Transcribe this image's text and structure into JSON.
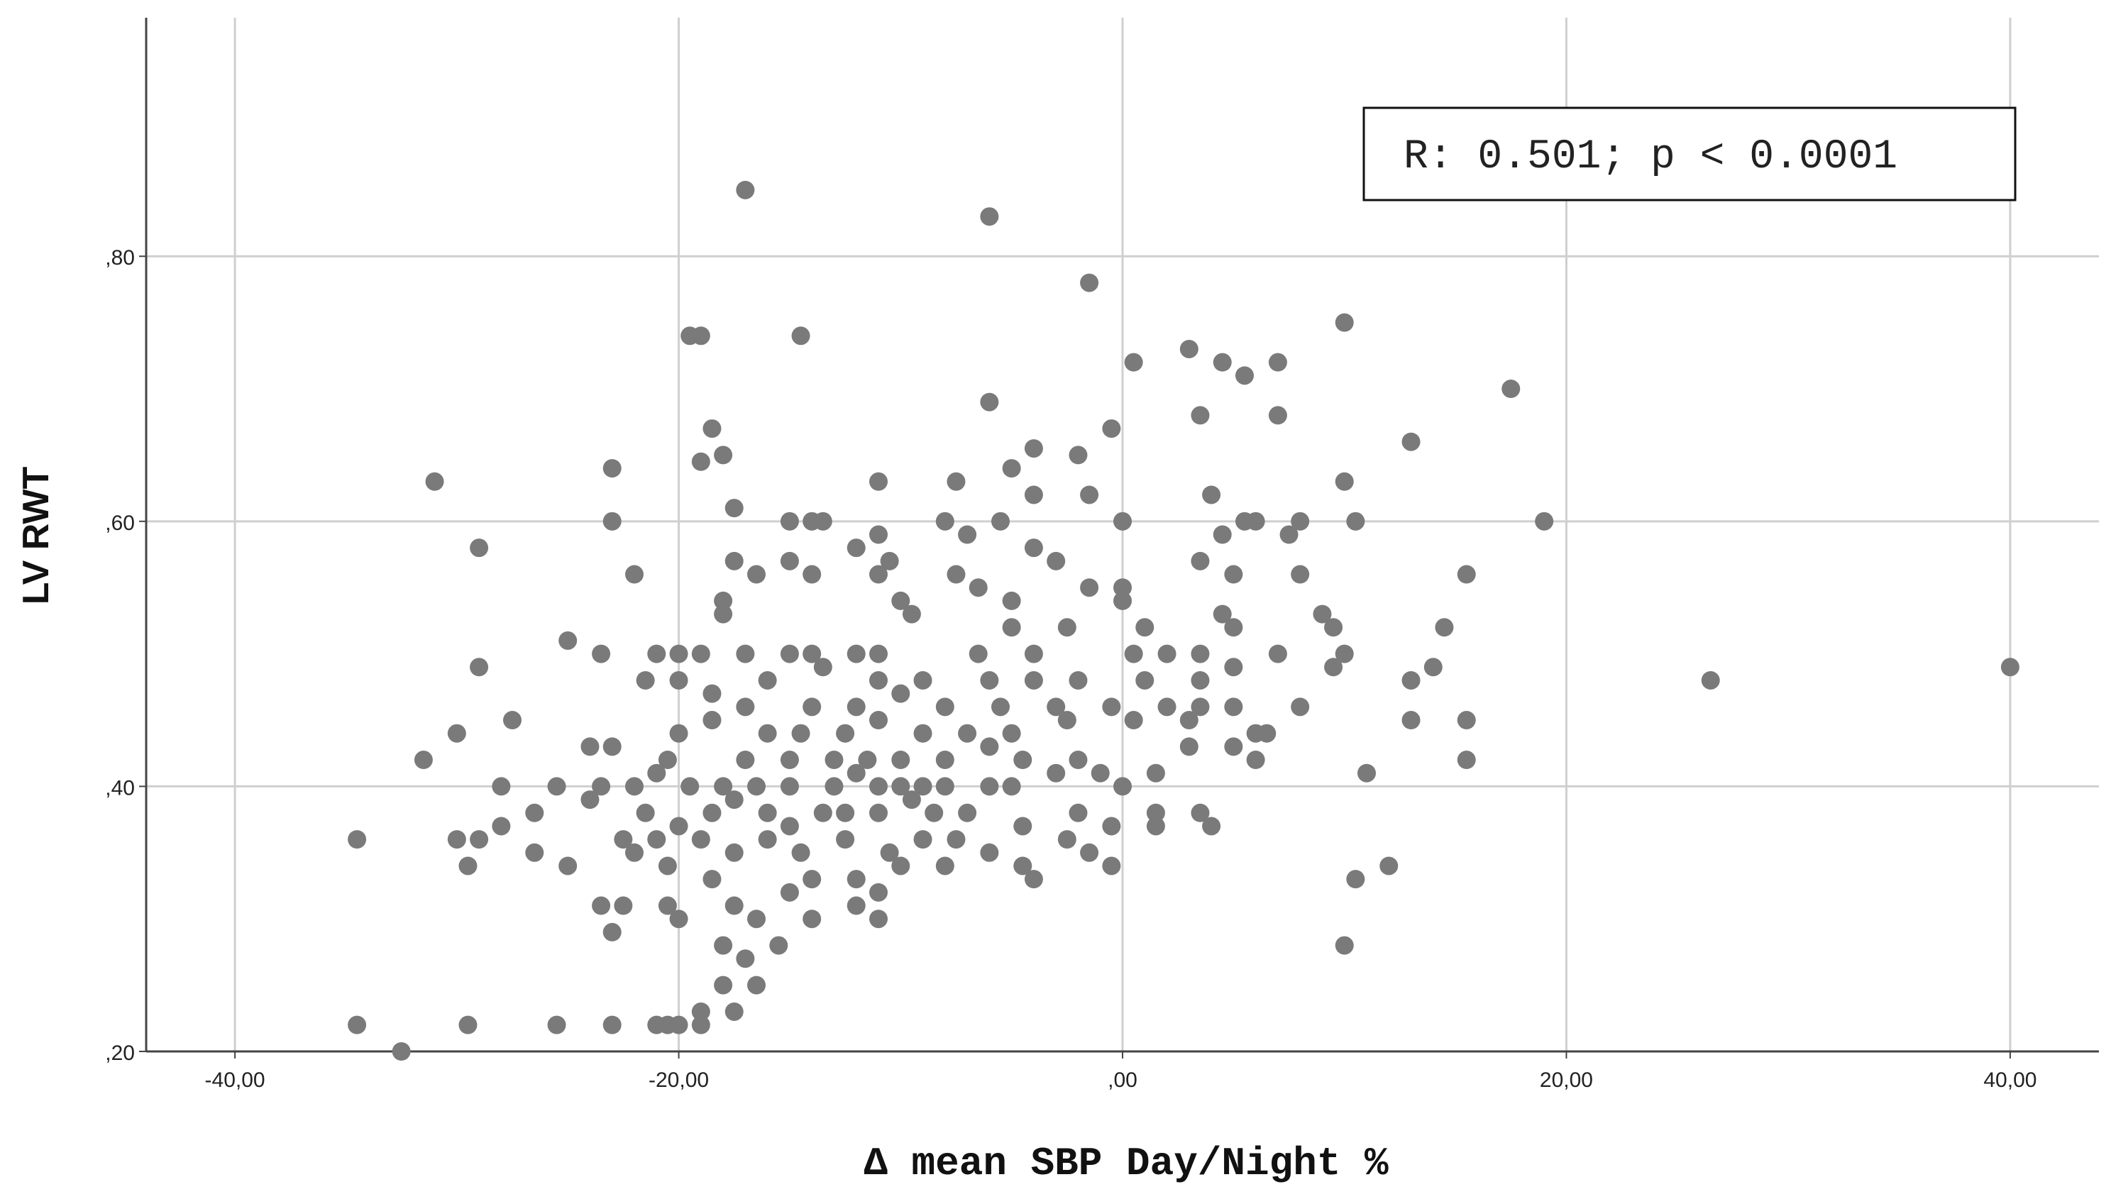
{
  "chart_data": {
    "type": "scatter",
    "xlabel": "Δ mean SBP Day/Night %",
    "ylabel": "LV RWT",
    "xlim": [
      -44,
      44
    ],
    "ylim": [
      0.2,
      0.98
    ],
    "x_ticks": [
      -40,
      -20,
      0,
      20,
      40
    ],
    "x_tick_labels": [
      "-40,00",
      "-20,00",
      ",00",
      "20,00",
      "40,00"
    ],
    "y_ticks": [
      0.2,
      0.4,
      0.6,
      0.8
    ],
    "y_tick_labels": [
      ",20",
      ",40",
      ",60",
      ",80"
    ],
    "grid": true,
    "annotation": "R: 0.501; p < 0.0001",
    "annotation_position": "top-right",
    "marker_color": "#7a7a7a",
    "points": [
      [
        -17,
        0.85
      ],
      [
        -6,
        0.83
      ],
      [
        -1.5,
        0.78
      ],
      [
        10,
        0.75
      ],
      [
        17.5,
        0.7
      ],
      [
        3,
        0.73
      ],
      [
        4.5,
        0.72
      ],
      [
        7,
        0.72
      ],
      [
        0.5,
        0.72
      ],
      [
        5.5,
        0.71
      ],
      [
        -19.5,
        0.74
      ],
      [
        -19,
        0.74
      ],
      [
        -14.5,
        0.74
      ],
      [
        -6,
        0.69
      ],
      [
        3.5,
        0.68
      ],
      [
        7,
        0.68
      ],
      [
        -0.5,
        0.67
      ],
      [
        13,
        0.66
      ],
      [
        -18.5,
        0.67
      ],
      [
        -18,
        0.65
      ],
      [
        -19,
        0.645
      ],
      [
        -4,
        0.655
      ],
      [
        -2,
        0.65
      ],
      [
        -5,
        0.64
      ],
      [
        -31,
        0.63
      ],
      [
        -23,
        0.64
      ],
      [
        -11,
        0.63
      ],
      [
        -7.5,
        0.63
      ],
      [
        10,
        0.63
      ],
      [
        -4,
        0.62
      ],
      [
        -1.5,
        0.62
      ],
      [
        4,
        0.62
      ],
      [
        -23,
        0.6
      ],
      [
        -15,
        0.6
      ],
      [
        -14,
        0.6
      ],
      [
        -13.5,
        0.6
      ],
      [
        -8,
        0.6
      ],
      [
        -5.5,
        0.6
      ],
      [
        0,
        0.6
      ],
      [
        5.5,
        0.6
      ],
      [
        6,
        0.6
      ],
      [
        8,
        0.6
      ],
      [
        10.5,
        0.6
      ],
      [
        19,
        0.6
      ],
      [
        -29,
        0.58
      ],
      [
        -17.5,
        0.61
      ],
      [
        -12,
        0.58
      ],
      [
        -11,
        0.59
      ],
      [
        -7,
        0.59
      ],
      [
        -4,
        0.58
      ],
      [
        4.5,
        0.59
      ],
      [
        7.5,
        0.59
      ],
      [
        -15,
        0.57
      ],
      [
        -17.5,
        0.57
      ],
      [
        -10.5,
        0.57
      ],
      [
        -3,
        0.57
      ],
      [
        3.5,
        0.57
      ],
      [
        -22,
        0.56
      ],
      [
        -16.5,
        0.56
      ],
      [
        -14,
        0.56
      ],
      [
        -11,
        0.56
      ],
      [
        -7.5,
        0.56
      ],
      [
        -6.5,
        0.55
      ],
      [
        -1.5,
        0.55
      ],
      [
        0,
        0.55
      ],
      [
        5,
        0.56
      ],
      [
        8,
        0.56
      ],
      [
        15.5,
        0.56
      ],
      [
        -18,
        0.54
      ],
      [
        -10,
        0.54
      ],
      [
        -5,
        0.54
      ],
      [
        0,
        0.54
      ],
      [
        4.5,
        0.53
      ],
      [
        9,
        0.53
      ],
      [
        -25,
        0.51
      ],
      [
        -18,
        0.53
      ],
      [
        -9.5,
        0.53
      ],
      [
        -5,
        0.52
      ],
      [
        -2.5,
        0.52
      ],
      [
        1,
        0.52
      ],
      [
        5,
        0.52
      ],
      [
        9.5,
        0.52
      ],
      [
        -29,
        0.49
      ],
      [
        -23.5,
        0.5
      ],
      [
        -21,
        0.5
      ],
      [
        -20,
        0.5
      ],
      [
        -19,
        0.5
      ],
      [
        -17,
        0.5
      ],
      [
        -15,
        0.5
      ],
      [
        -14,
        0.5
      ],
      [
        -12,
        0.5
      ],
      [
        -11,
        0.5
      ],
      [
        -6.5,
        0.5
      ],
      [
        -4,
        0.5
      ],
      [
        0.5,
        0.5
      ],
      [
        2,
        0.5
      ],
      [
        3.5,
        0.5
      ],
      [
        7,
        0.5
      ],
      [
        14.5,
        0.52
      ],
      [
        10,
        0.5
      ],
      [
        14,
        0.49
      ],
      [
        -21.5,
        0.48
      ],
      [
        -20,
        0.48
      ],
      [
        -18.5,
        0.47
      ],
      [
        -16,
        0.48
      ],
      [
        -13.5,
        0.49
      ],
      [
        -11,
        0.48
      ],
      [
        -9,
        0.48
      ],
      [
        -6,
        0.48
      ],
      [
        -4,
        0.48
      ],
      [
        -2,
        0.48
      ],
      [
        1,
        0.48
      ],
      [
        3.5,
        0.48
      ],
      [
        5,
        0.49
      ],
      [
        9.5,
        0.49
      ],
      [
        13,
        0.48
      ],
      [
        26.5,
        0.48
      ],
      [
        40,
        0.49
      ],
      [
        -17,
        0.46
      ],
      [
        -14,
        0.46
      ],
      [
        -12,
        0.46
      ],
      [
        -10,
        0.47
      ],
      [
        -8,
        0.46
      ],
      [
        -5.5,
        0.46
      ],
      [
        -3,
        0.46
      ],
      [
        -0.5,
        0.46
      ],
      [
        2,
        0.46
      ],
      [
        3.5,
        0.46
      ],
      [
        5,
        0.46
      ],
      [
        8,
        0.46
      ],
      [
        -27.5,
        0.45
      ],
      [
        -30,
        0.44
      ],
      [
        -23,
        0.43
      ],
      [
        -20,
        0.44
      ],
      [
        -18.5,
        0.45
      ],
      [
        -16,
        0.44
      ],
      [
        -14.5,
        0.44
      ],
      [
        -12.5,
        0.44
      ],
      [
        -11,
        0.45
      ],
      [
        -9,
        0.44
      ],
      [
        -7,
        0.44
      ],
      [
        -5,
        0.44
      ],
      [
        -2.5,
        0.45
      ],
      [
        0.5,
        0.45
      ],
      [
        3,
        0.45
      ],
      [
        6,
        0.44
      ],
      [
        6.5,
        0.44
      ],
      [
        13,
        0.45
      ],
      [
        15.5,
        0.45
      ],
      [
        -31.5,
        0.42
      ],
      [
        -24,
        0.43
      ],
      [
        -20.5,
        0.42
      ],
      [
        -17,
        0.42
      ],
      [
        -15,
        0.42
      ],
      [
        -13,
        0.42
      ],
      [
        -11.5,
        0.42
      ],
      [
        -10,
        0.42
      ],
      [
        -8,
        0.42
      ],
      [
        -6,
        0.43
      ],
      [
        -4.5,
        0.42
      ],
      [
        -2,
        0.42
      ],
      [
        3,
        0.43
      ],
      [
        5,
        0.43
      ],
      [
        6,
        0.42
      ],
      [
        15.5,
        0.42
      ],
      [
        -28,
        0.4
      ],
      [
        -25.5,
        0.4
      ],
      [
        -23.5,
        0.4
      ],
      [
        -22,
        0.4
      ],
      [
        -21,
        0.41
      ],
      [
        -19.5,
        0.4
      ],
      [
        -18,
        0.4
      ],
      [
        -16.5,
        0.4
      ],
      [
        -15,
        0.4
      ],
      [
        -13,
        0.4
      ],
      [
        -12,
        0.41
      ],
      [
        -11,
        0.4
      ],
      [
        -10,
        0.4
      ],
      [
        -9,
        0.4
      ],
      [
        -8,
        0.4
      ],
      [
        -6,
        0.4
      ],
      [
        -5,
        0.4
      ],
      [
        -3,
        0.41
      ],
      [
        -1,
        0.41
      ],
      [
        0,
        0.4
      ],
      [
        1.5,
        0.41
      ],
      [
        11,
        0.41
      ],
      [
        -26.5,
        0.38
      ],
      [
        -24,
        0.39
      ],
      [
        -21.5,
        0.38
      ],
      [
        -20,
        0.37
      ],
      [
        -18.5,
        0.38
      ],
      [
        -17.5,
        0.39
      ],
      [
        -16,
        0.38
      ],
      [
        -15,
        0.37
      ],
      [
        -13.5,
        0.38
      ],
      [
        -12.5,
        0.38
      ],
      [
        -11,
        0.38
      ],
      [
        -9.5,
        0.39
      ],
      [
        -8.5,
        0.38
      ],
      [
        -7,
        0.38
      ],
      [
        -2,
        0.38
      ],
      [
        -0.5,
        0.37
      ],
      [
        1.5,
        0.38
      ],
      [
        3.5,
        0.38
      ],
      [
        -34.5,
        0.36
      ],
      [
        -30,
        0.36
      ],
      [
        -29,
        0.36
      ],
      [
        -28,
        0.37
      ],
      [
        -22.5,
        0.36
      ],
      [
        -21,
        0.36
      ],
      [
        -19,
        0.36
      ],
      [
        -17.5,
        0.35
      ],
      [
        -16,
        0.36
      ],
      [
        -14.5,
        0.35
      ],
      [
        -12.5,
        0.36
      ],
      [
        -10.5,
        0.35
      ],
      [
        -9,
        0.36
      ],
      [
        -7.5,
        0.36
      ],
      [
        -4.5,
        0.37
      ],
      [
        -2.5,
        0.36
      ],
      [
        1.5,
        0.37
      ],
      [
        4,
        0.37
      ],
      [
        -29.5,
        0.34
      ],
      [
        -26.5,
        0.35
      ],
      [
        -25,
        0.34
      ],
      [
        -22,
        0.35
      ],
      [
        -20.5,
        0.34
      ],
      [
        -18.5,
        0.33
      ],
      [
        -14,
        0.33
      ],
      [
        -12,
        0.33
      ],
      [
        -10,
        0.34
      ],
      [
        -8,
        0.34
      ],
      [
        -6,
        0.35
      ],
      [
        -4.5,
        0.34
      ],
      [
        -4,
        0.33
      ],
      [
        -1.5,
        0.35
      ],
      [
        -0.5,
        0.34
      ],
      [
        10.5,
        0.33
      ],
      [
        12,
        0.34
      ],
      [
        -23.5,
        0.31
      ],
      [
        -22.5,
        0.31
      ],
      [
        -20.5,
        0.31
      ],
      [
        -20,
        0.3
      ],
      [
        -17.5,
        0.31
      ],
      [
        -16.5,
        0.3
      ],
      [
        -15,
        0.32
      ],
      [
        -14,
        0.3
      ],
      [
        -12,
        0.31
      ],
      [
        -11,
        0.32
      ],
      [
        -11,
        0.3
      ],
      [
        -23,
        0.29
      ],
      [
        -18,
        0.28
      ],
      [
        -17,
        0.27
      ],
      [
        -15.5,
        0.28
      ],
      [
        -16.5,
        0.25
      ],
      [
        -18,
        0.25
      ],
      [
        -17.5,
        0.23
      ],
      [
        10,
        0.28
      ],
      [
        -19,
        0.23
      ],
      [
        -34.5,
        0.22
      ],
      [
        -29.5,
        0.22
      ],
      [
        -25.5,
        0.22
      ],
      [
        -23,
        0.22
      ],
      [
        -21,
        0.22
      ],
      [
        -20.5,
        0.22
      ],
      [
        -20,
        0.22
      ],
      [
        -19,
        0.22
      ],
      [
        -32.5,
        0.2
      ]
    ]
  }
}
